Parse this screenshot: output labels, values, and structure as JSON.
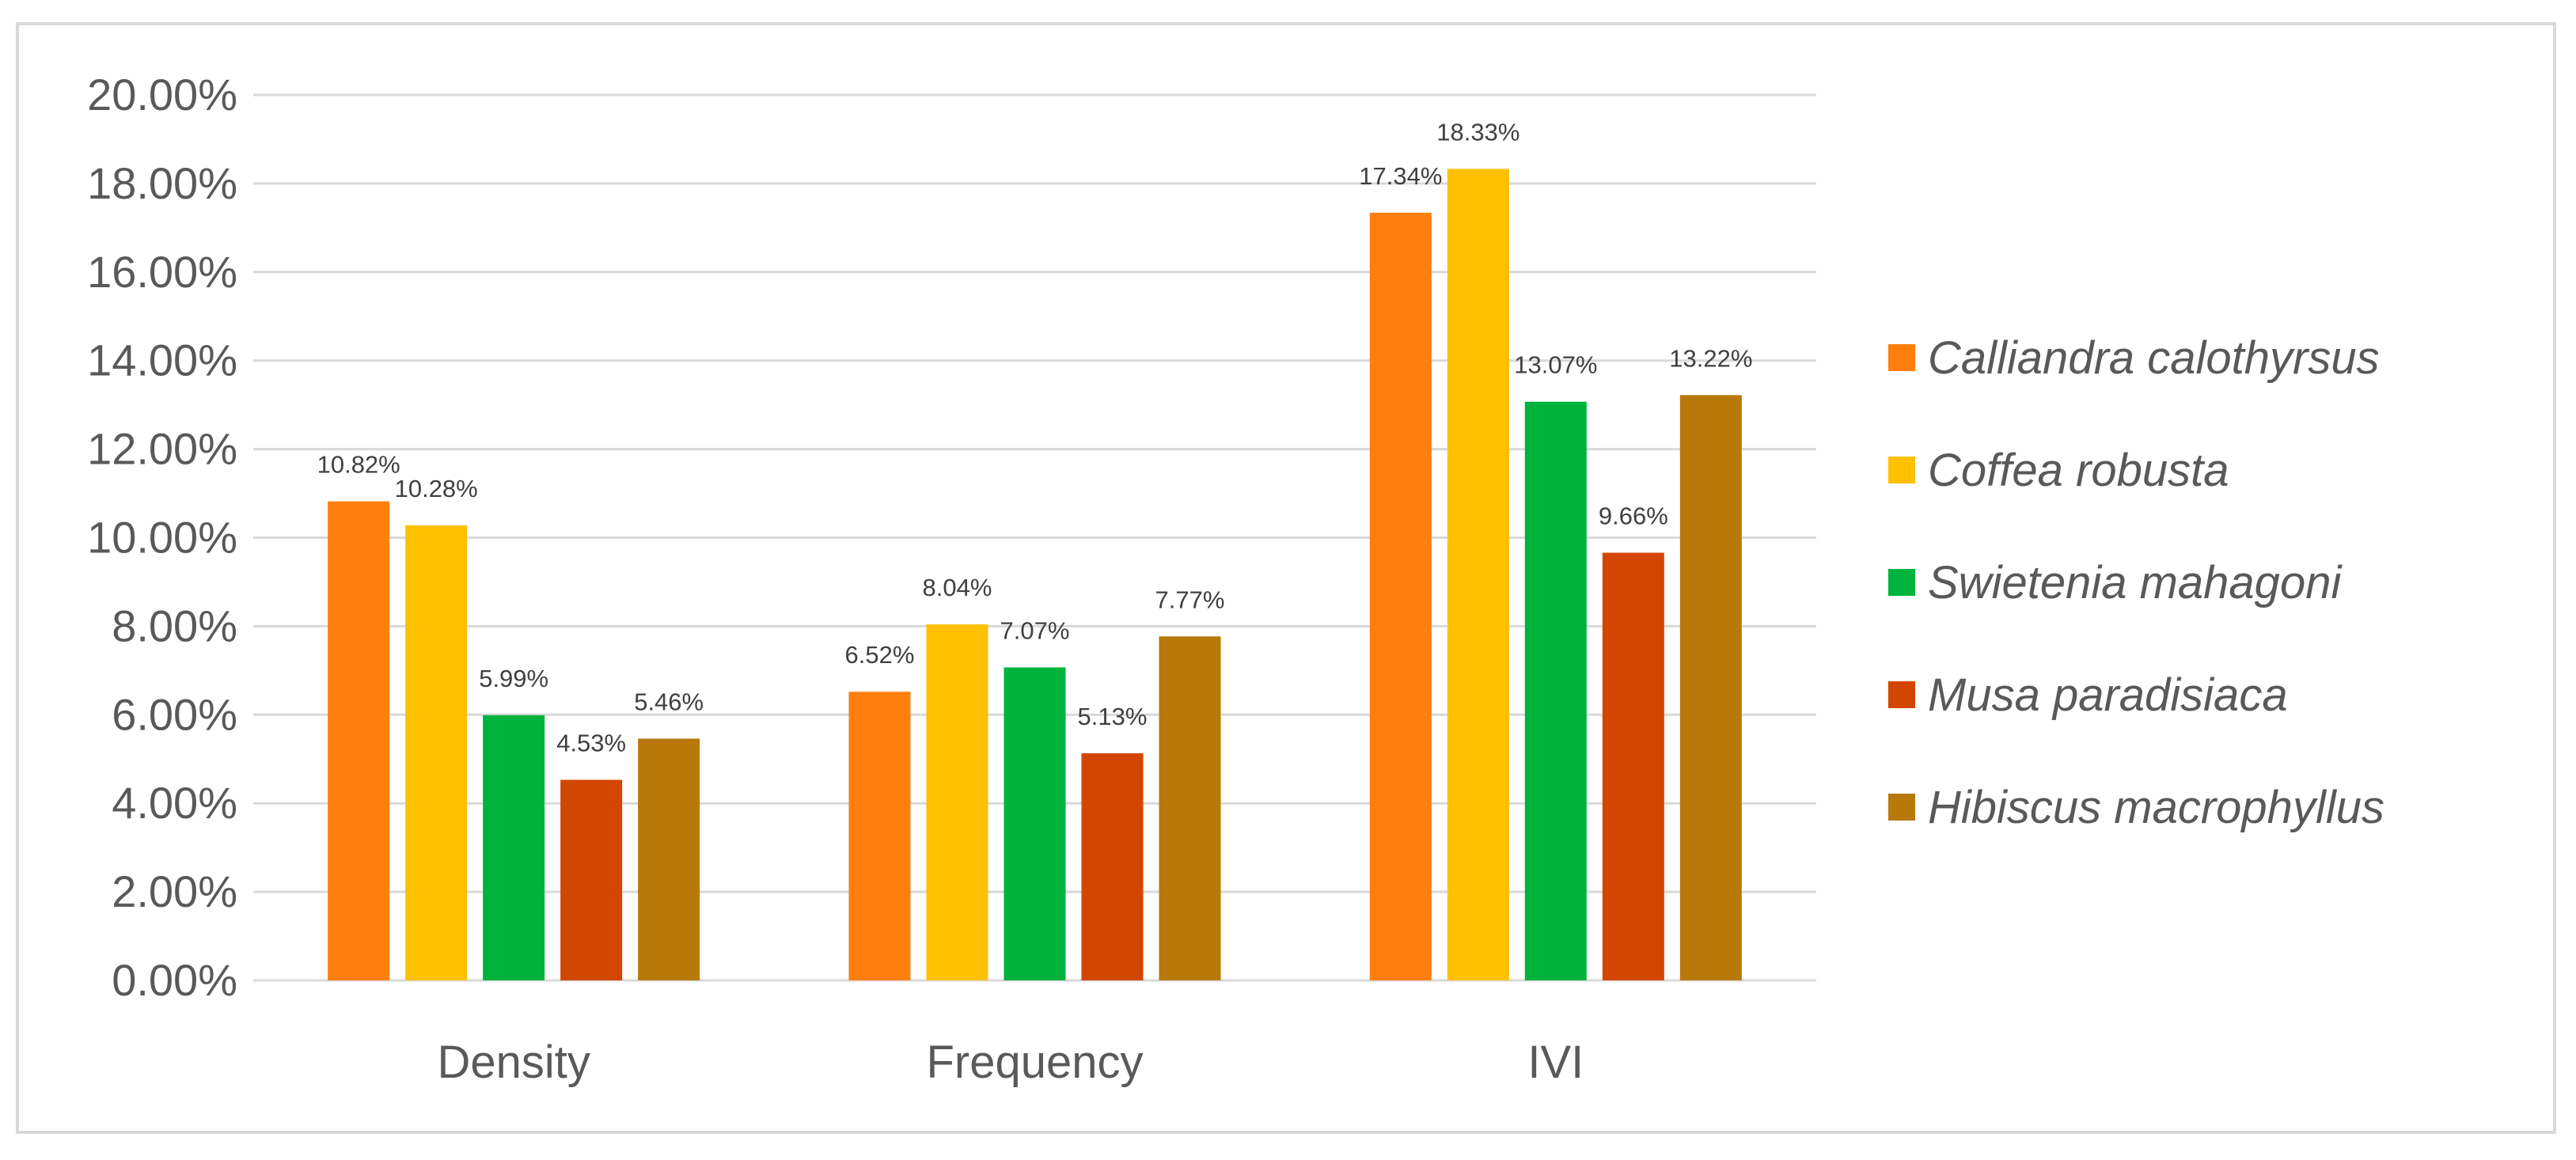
{
  "chart_data": {
    "type": "bar",
    "title": "",
    "xlabel": "",
    "ylabel": "",
    "ylim": [
      0,
      20
    ],
    "y_tick_step": 2,
    "y_tick_format": "percent_2dp",
    "grid": true,
    "legend_position": "right",
    "categories": [
      "Density",
      "Frequency",
      "IVI"
    ],
    "series": [
      {
        "name": "Calliandra calothyrsus",
        "color": "#FF7F0E",
        "values": [
          10.82,
          6.52,
          17.34
        ],
        "labels": [
          "10.82%",
          "6.52%",
          "17.34%"
        ]
      },
      {
        "name": "Coffea robusta",
        "color": "#FFC000",
        "values": [
          10.28,
          8.04,
          18.33
        ],
        "labels": [
          "10.28%",
          "8.04%",
          "18.33%"
        ]
      },
      {
        "name": "Swietenia mahagoni",
        "color": "#00B33C",
        "values": [
          5.99,
          7.07,
          13.07
        ],
        "labels": [
          "5.99%",
          "7.07%",
          "13.07%"
        ]
      },
      {
        "name": "Musa paradisiaca",
        "color": "#D24600",
        "values": [
          4.53,
          5.13,
          9.66
        ],
        "labels": [
          "4.53%",
          "5.13%",
          "9.66%"
        ]
      },
      {
        "name": "Hibiscus macrophyllus",
        "color": "#B8780A",
        "values": [
          5.46,
          7.77,
          13.22
        ],
        "labels": [
          "5.46%",
          "7.77%",
          "13.22%"
        ]
      }
    ]
  }
}
